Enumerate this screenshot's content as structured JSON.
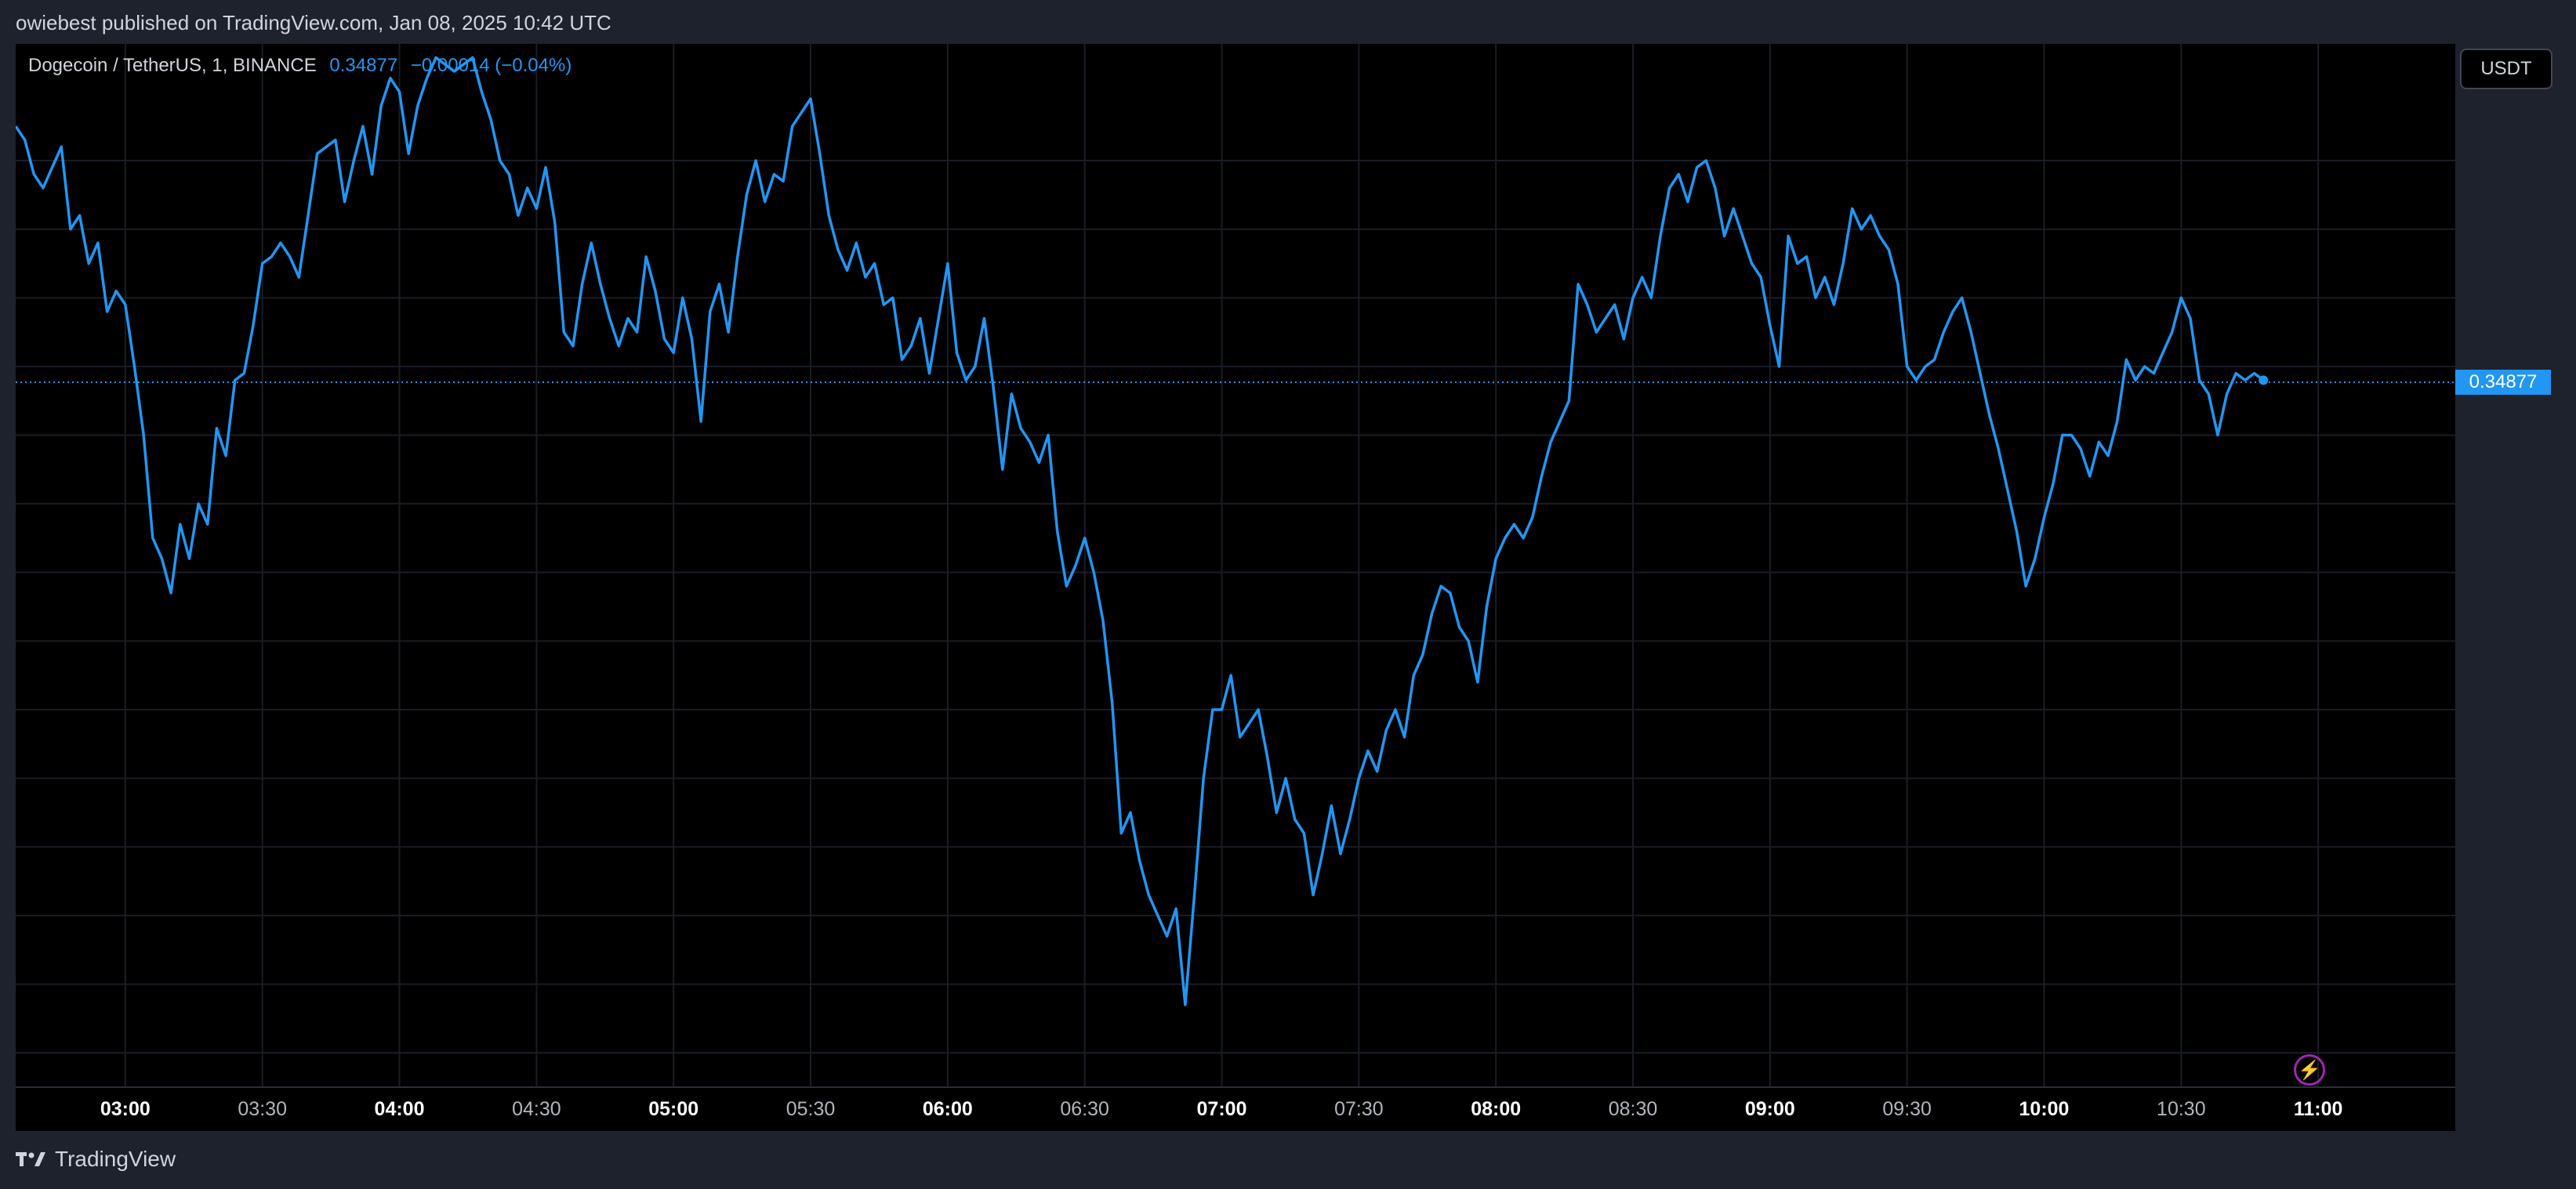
{
  "header": {
    "publisher_text": "owiebest published on TradingView.com, Jan 08, 2025 10:42 UTC"
  },
  "legend": {
    "symbol": "Dogecoin / TetherUS, 1, BINANCE",
    "last_price": "0.34877",
    "change": "−0.00014 (−0.04%)"
  },
  "unit_button": "USDT",
  "last_price_tag": "0.34877",
  "footer": {
    "brand": "TradingView"
  },
  "icons": {
    "brand_logo": "tradingview-logo-icon",
    "bolt": "lightning-icon"
  },
  "colors": {
    "line": "#2196f3",
    "background": "#000000",
    "grid": "#1a1d25",
    "panel": "#1e222d"
  },
  "chart_data": {
    "type": "line",
    "title": "",
    "xlabel": "",
    "ylabel": "",
    "ylim": [
      0.3385,
      0.3537
    ],
    "y_ticks": [
      "0.33900",
      "0.34000",
      "0.34100",
      "0.34200",
      "0.34300",
      "0.34400",
      "0.34500",
      "0.34600",
      "0.34700",
      "0.34800",
      "0.34900",
      "0.35000",
      "0.35100",
      "0.35200"
    ],
    "x_ticks": [
      {
        "t": "03:00",
        "label": "03:00",
        "major": true
      },
      {
        "t": "03:30",
        "label": "03:30",
        "major": false
      },
      {
        "t": "04:00",
        "label": "04:00",
        "major": true
      },
      {
        "t": "04:30",
        "label": "04:30",
        "major": false
      },
      {
        "t": "05:00",
        "label": "05:00",
        "major": true
      },
      {
        "t": "05:30",
        "label": "05:30",
        "major": false
      },
      {
        "t": "06:00",
        "label": "06:00",
        "major": true
      },
      {
        "t": "06:30",
        "label": "06:30",
        "major": false
      },
      {
        "t": "07:00",
        "label": "07:00",
        "major": true
      },
      {
        "t": "07:30",
        "label": "07:30",
        "major": false
      },
      {
        "t": "08:00",
        "label": "08:00",
        "major": true
      },
      {
        "t": "08:30",
        "label": "08:30",
        "major": false
      },
      {
        "t": "09:00",
        "label": "09:00",
        "major": true
      },
      {
        "t": "09:30",
        "label": "09:30",
        "major": false
      },
      {
        "t": "10:00",
        "label": "10:00",
        "major": true
      },
      {
        "t": "10:30",
        "label": "10:30",
        "major": false
      },
      {
        "t": "11:00",
        "label": "11:00",
        "major": true
      }
    ],
    "xlim": [
      "02:36",
      "11:30"
    ],
    "last_value": 0.34877,
    "series": [
      {
        "points": [
          [
            "02:36",
            0.3525
          ],
          [
            "02:38",
            0.3523
          ],
          [
            "02:40",
            0.3518
          ],
          [
            "02:42",
            0.3516
          ],
          [
            "02:44",
            0.3519
          ],
          [
            "02:46",
            0.3522
          ],
          [
            "02:48",
            0.351
          ],
          [
            "02:50",
            0.3512
          ],
          [
            "02:52",
            0.3505
          ],
          [
            "02:54",
            0.3508
          ],
          [
            "02:56",
            0.3498
          ],
          [
            "02:58",
            0.3501
          ],
          [
            "03:00",
            0.3499
          ],
          [
            "03:02",
            0.349
          ],
          [
            "03:04",
            0.348
          ],
          [
            "03:06",
            0.3465
          ],
          [
            "03:08",
            0.3462
          ],
          [
            "03:10",
            0.3457
          ],
          [
            "03:12",
            0.3467
          ],
          [
            "03:14",
            0.3462
          ],
          [
            "03:16",
            0.347
          ],
          [
            "03:18",
            0.3467
          ],
          [
            "03:20",
            0.3481
          ],
          [
            "03:22",
            0.3477
          ],
          [
            "03:24",
            0.3488
          ],
          [
            "03:26",
            0.3489
          ],
          [
            "03:28",
            0.3496
          ],
          [
            "03:30",
            0.3505
          ],
          [
            "03:32",
            0.3506
          ],
          [
            "03:34",
            0.3508
          ],
          [
            "03:36",
            0.3506
          ],
          [
            "03:38",
            0.3503
          ],
          [
            "03:40",
            0.3512
          ],
          [
            "03:42",
            0.3521
          ],
          [
            "03:44",
            0.3522
          ],
          [
            "03:46",
            0.3523
          ],
          [
            "03:48",
            0.3514
          ],
          [
            "03:50",
            0.352
          ],
          [
            "03:52",
            0.3525
          ],
          [
            "03:54",
            0.3518
          ],
          [
            "03:56",
            0.3528
          ],
          [
            "03:58",
            0.3532
          ],
          [
            "04:00",
            0.353
          ],
          [
            "04:02",
            0.3521
          ],
          [
            "04:04",
            0.3528
          ],
          [
            "04:06",
            0.3532
          ],
          [
            "04:08",
            0.3535
          ],
          [
            "04:10",
            0.3534
          ],
          [
            "04:12",
            0.3533
          ],
          [
            "04:14",
            0.3534
          ],
          [
            "04:16",
            0.3535
          ],
          [
            "04:18",
            0.353
          ],
          [
            "04:20",
            0.3526
          ],
          [
            "04:22",
            0.352
          ],
          [
            "04:24",
            0.3518
          ],
          [
            "04:26",
            0.3512
          ],
          [
            "04:28",
            0.3516
          ],
          [
            "04:30",
            0.3513
          ],
          [
            "04:32",
            0.3519
          ],
          [
            "04:34",
            0.3511
          ],
          [
            "04:36",
            0.3495
          ],
          [
            "04:38",
            0.3493
          ],
          [
            "04:40",
            0.3502
          ],
          [
            "04:42",
            0.3508
          ],
          [
            "04:44",
            0.3502
          ],
          [
            "04:46",
            0.3497
          ],
          [
            "04:48",
            0.3493
          ],
          [
            "04:50",
            0.3497
          ],
          [
            "04:52",
            0.3495
          ],
          [
            "04:54",
            0.3506
          ],
          [
            "04:56",
            0.3501
          ],
          [
            "04:58",
            0.3494
          ],
          [
            "05:00",
            0.3492
          ],
          [
            "05:02",
            0.35
          ],
          [
            "05:04",
            0.3494
          ],
          [
            "05:06",
            0.3482
          ],
          [
            "05:08",
            0.3498
          ],
          [
            "05:10",
            0.3502
          ],
          [
            "05:12",
            0.3495
          ],
          [
            "05:14",
            0.3506
          ],
          [
            "05:16",
            0.3515
          ],
          [
            "05:18",
            0.352
          ],
          [
            "05:20",
            0.3514
          ],
          [
            "05:22",
            0.3518
          ],
          [
            "05:24",
            0.3517
          ],
          [
            "05:26",
            0.3525
          ],
          [
            "05:28",
            0.3527
          ],
          [
            "05:30",
            0.3529
          ],
          [
            "05:32",
            0.3521
          ],
          [
            "05:34",
            0.3512
          ],
          [
            "05:36",
            0.3507
          ],
          [
            "05:38",
            0.3504
          ],
          [
            "05:40",
            0.3508
          ],
          [
            "05:42",
            0.3503
          ],
          [
            "05:44",
            0.3505
          ],
          [
            "05:46",
            0.3499
          ],
          [
            "05:48",
            0.35
          ],
          [
            "05:50",
            0.3491
          ],
          [
            "05:52",
            0.3493
          ],
          [
            "05:54",
            0.3497
          ],
          [
            "05:56",
            0.3489
          ],
          [
            "05:58",
            0.3497
          ],
          [
            "06:00",
            0.3505
          ],
          [
            "06:02",
            0.3492
          ],
          [
            "06:04",
            0.3488
          ],
          [
            "06:06",
            0.349
          ],
          [
            "06:08",
            0.3497
          ],
          [
            "06:10",
            0.3487
          ],
          [
            "06:12",
            0.3475
          ],
          [
            "06:14",
            0.3486
          ],
          [
            "06:16",
            0.3481
          ],
          [
            "06:18",
            0.3479
          ],
          [
            "06:20",
            0.3476
          ],
          [
            "06:22",
            0.348
          ],
          [
            "06:24",
            0.3466
          ],
          [
            "06:26",
            0.3458
          ],
          [
            "06:28",
            0.3461
          ],
          [
            "06:30",
            0.3465
          ],
          [
            "06:32",
            0.346
          ],
          [
            "06:34",
            0.3453
          ],
          [
            "06:36",
            0.3441
          ],
          [
            "06:38",
            0.3422
          ],
          [
            "06:40",
            0.3425
          ],
          [
            "06:42",
            0.3418
          ],
          [
            "06:44",
            0.3413
          ],
          [
            "06:46",
            0.341
          ],
          [
            "06:48",
            0.3407
          ],
          [
            "06:50",
            0.3411
          ],
          [
            "06:52",
            0.3397
          ],
          [
            "06:54",
            0.3413
          ],
          [
            "06:56",
            0.343
          ],
          [
            "06:58",
            0.344
          ],
          [
            "07:00",
            0.344
          ],
          [
            "07:02",
            0.3445
          ],
          [
            "07:04",
            0.3436
          ],
          [
            "07:06",
            0.3438
          ],
          [
            "07:08",
            0.344
          ],
          [
            "07:10",
            0.3433
          ],
          [
            "07:12",
            0.3425
          ],
          [
            "07:14",
            0.343
          ],
          [
            "07:16",
            0.3424
          ],
          [
            "07:18",
            0.3422
          ],
          [
            "07:20",
            0.3413
          ],
          [
            "07:22",
            0.3419
          ],
          [
            "07:24",
            0.3426
          ],
          [
            "07:26",
            0.3419
          ],
          [
            "07:28",
            0.3424
          ],
          [
            "07:30",
            0.343
          ],
          [
            "07:32",
            0.3434
          ],
          [
            "07:34",
            0.3431
          ],
          [
            "07:36",
            0.3437
          ],
          [
            "07:38",
            0.344
          ],
          [
            "07:40",
            0.3436
          ],
          [
            "07:42",
            0.3445
          ],
          [
            "07:44",
            0.3448
          ],
          [
            "07:46",
            0.3454
          ],
          [
            "07:48",
            0.3458
          ],
          [
            "07:50",
            0.3457
          ],
          [
            "07:52",
            0.3452
          ],
          [
            "07:54",
            0.345
          ],
          [
            "07:56",
            0.3444
          ],
          [
            "07:58",
            0.3455
          ],
          [
            "08:00",
            0.3462
          ],
          [
            "08:02",
            0.3465
          ],
          [
            "08:04",
            0.3467
          ],
          [
            "08:06",
            0.3465
          ],
          [
            "08:08",
            0.3468
          ],
          [
            "08:10",
            0.3474
          ],
          [
            "08:12",
            0.3479
          ],
          [
            "08:14",
            0.3482
          ],
          [
            "08:16",
            0.3485
          ],
          [
            "08:18",
            0.3502
          ],
          [
            "08:20",
            0.3499
          ],
          [
            "08:22",
            0.3495
          ],
          [
            "08:24",
            0.3497
          ],
          [
            "08:26",
            0.3499
          ],
          [
            "08:28",
            0.3494
          ],
          [
            "08:30",
            0.35
          ],
          [
            "08:32",
            0.3503
          ],
          [
            "08:34",
            0.35
          ],
          [
            "08:36",
            0.3509
          ],
          [
            "08:38",
            0.3516
          ],
          [
            "08:40",
            0.3518
          ],
          [
            "08:42",
            0.3514
          ],
          [
            "08:44",
            0.3519
          ],
          [
            "08:46",
            0.352
          ],
          [
            "08:48",
            0.3516
          ],
          [
            "08:50",
            0.3509
          ],
          [
            "08:52",
            0.3513
          ],
          [
            "08:54",
            0.3509
          ],
          [
            "08:56",
            0.3505
          ],
          [
            "08:58",
            0.3503
          ],
          [
            "09:00",
            0.3496
          ],
          [
            "09:02",
            0.349
          ],
          [
            "09:04",
            0.3509
          ],
          [
            "09:06",
            0.3505
          ],
          [
            "09:08",
            0.3506
          ],
          [
            "09:10",
            0.35
          ],
          [
            "09:12",
            0.3503
          ],
          [
            "09:14",
            0.3499
          ],
          [
            "09:16",
            0.3505
          ],
          [
            "09:18",
            0.3513
          ],
          [
            "09:20",
            0.351
          ],
          [
            "09:22",
            0.3512
          ],
          [
            "09:24",
            0.3509
          ],
          [
            "09:26",
            0.3507
          ],
          [
            "09:28",
            0.3502
          ],
          [
            "09:30",
            0.349
          ],
          [
            "09:32",
            0.3488
          ],
          [
            "09:34",
            0.349
          ],
          [
            "09:36",
            0.3491
          ],
          [
            "09:38",
            0.3495
          ],
          [
            "09:40",
            0.3498
          ],
          [
            "09:42",
            0.35
          ],
          [
            "09:44",
            0.3495
          ],
          [
            "09:46",
            0.3489
          ],
          [
            "09:48",
            0.3483
          ],
          [
            "09:50",
            0.3478
          ],
          [
            "09:52",
            0.3472
          ],
          [
            "09:54",
            0.3466
          ],
          [
            "09:56",
            0.3458
          ],
          [
            "09:58",
            0.3462
          ],
          [
            "10:00",
            0.3468
          ],
          [
            "10:02",
            0.3473
          ],
          [
            "10:04",
            0.348
          ],
          [
            "10:06",
            0.348
          ],
          [
            "10:08",
            0.3478
          ],
          [
            "10:10",
            0.3474
          ],
          [
            "10:12",
            0.3479
          ],
          [
            "10:14",
            0.3477
          ],
          [
            "10:16",
            0.3482
          ],
          [
            "10:18",
            0.3491
          ],
          [
            "10:20",
            0.3488
          ],
          [
            "10:22",
            0.349
          ],
          [
            "10:24",
            0.3489
          ],
          [
            "10:26",
            0.3492
          ],
          [
            "10:28",
            0.3495
          ],
          [
            "10:30",
            0.35
          ],
          [
            "10:32",
            0.3497
          ],
          [
            "10:34",
            0.3488
          ],
          [
            "10:36",
            0.3486
          ],
          [
            "10:38",
            0.348
          ],
          [
            "10:40",
            0.3486
          ],
          [
            "10:42",
            0.3489
          ],
          [
            "10:44",
            0.3488
          ],
          [
            "10:46",
            0.3489
          ],
          [
            "10:48",
            0.3488
          ]
        ]
      }
    ]
  }
}
